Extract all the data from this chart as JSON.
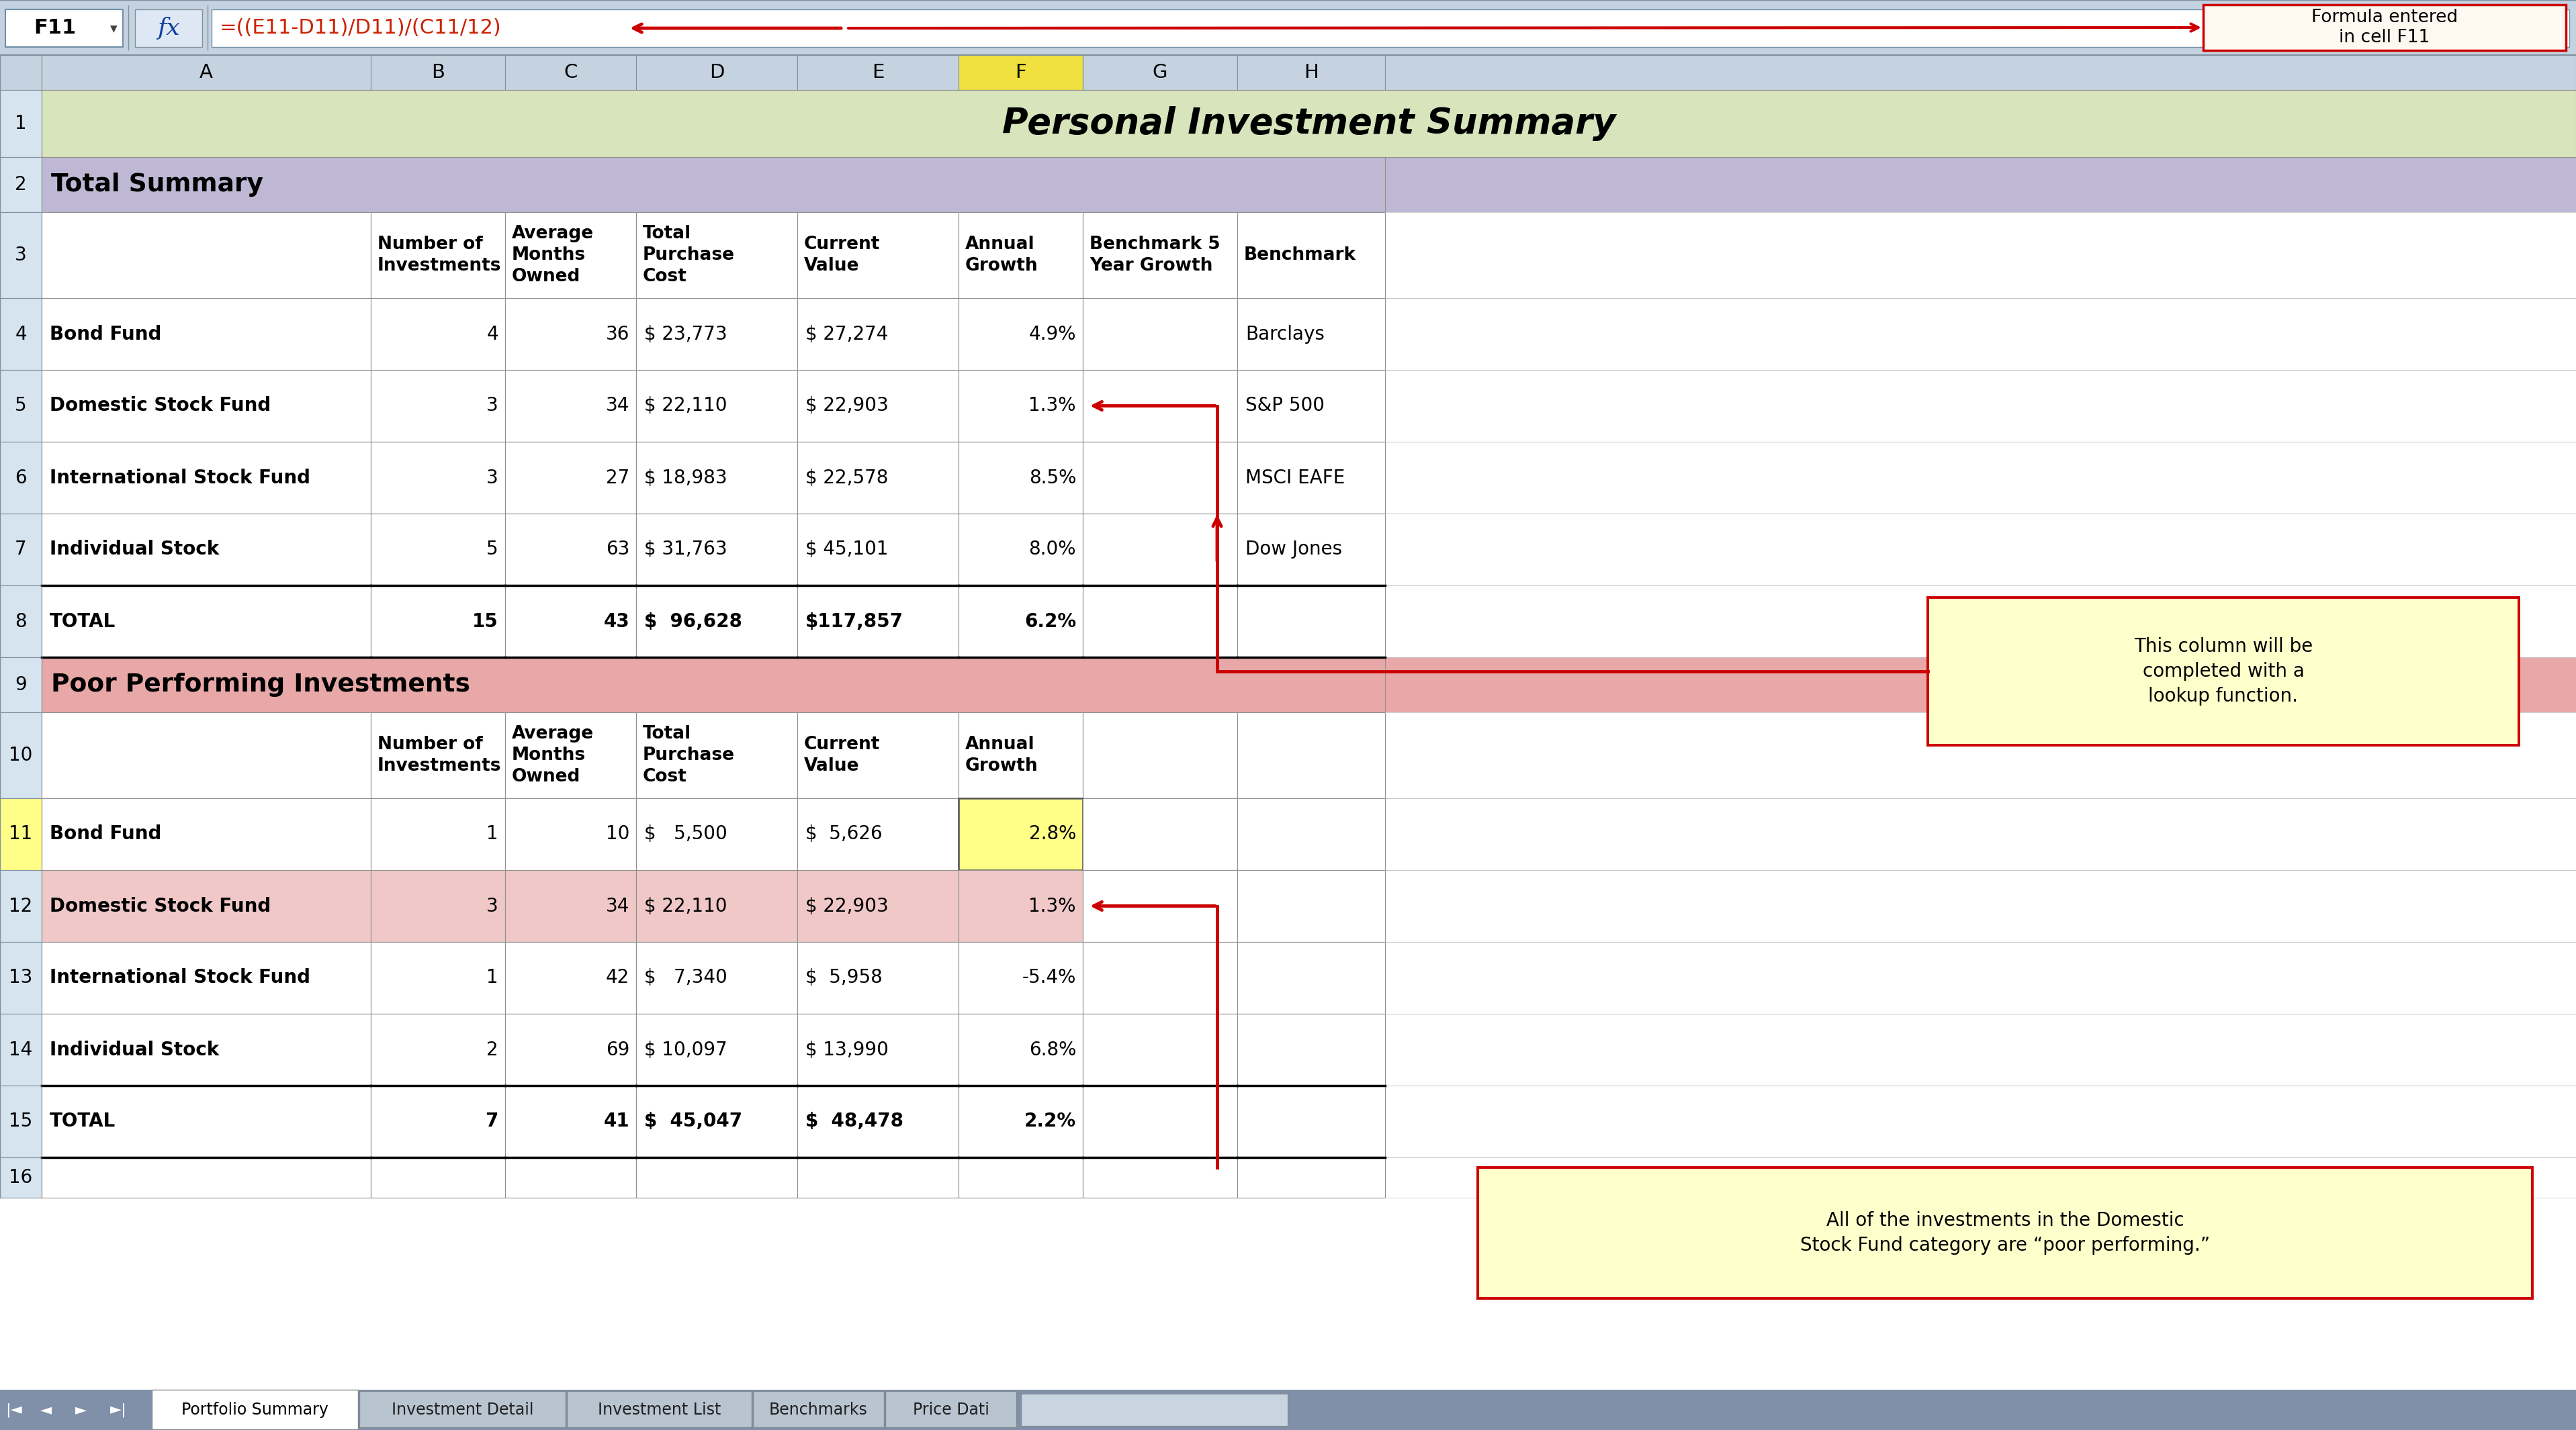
{
  "title": "Personal Investment Summary",
  "formula_bar_cell": "F11",
  "formula_bar_formula": "=((E11-D11)/D11)/(C11/12)",
  "formula_note": "Formula entered\nin cell F11",
  "section1_header": "Total Summary",
  "section1_col_headers": [
    "",
    "Number of\nInvestments",
    "Average\nMonths\nOwned",
    "Total\nPurchase\nCost",
    "Current\nValue",
    "Annual\nGrowth",
    "Benchmark 5\nYear Growth",
    "Benchmark"
  ],
  "section1_rows": [
    [
      "Bond Fund",
      "4",
      "36",
      "$ 23,773",
      "$ 27,274",
      "4.9%",
      "",
      "Barclays"
    ],
    [
      "Domestic Stock Fund",
      "3",
      "34",
      "$ 22,110",
      "$ 22,903",
      "1.3%",
      "",
      "S&P 500"
    ],
    [
      "International Stock Fund",
      "3",
      "27",
      "$ 18,983",
      "$ 22,578",
      "8.5%",
      "",
      "MSCI EAFE"
    ],
    [
      "Individual Stock",
      "5",
      "63",
      "$ 31,763",
      "$ 45,101",
      "8.0%",
      "",
      "Dow Jones"
    ]
  ],
  "section1_total": [
    "TOTAL",
    "15",
    "43",
    "$  96,628",
    "$117,857",
    "6.2%",
    "",
    ""
  ],
  "section2_header": "Poor Performing Investments",
  "section2_col_headers": [
    "",
    "Number of\nInvestments",
    "Average\nMonths\nOwned",
    "Total\nPurchase\nCost",
    "Current\nValue",
    "Annual\nGrowth",
    "",
    ""
  ],
  "section2_rows": [
    [
      "Bond Fund",
      "1",
      "10",
      "$   5,500",
      "$  5,626",
      "2.8%",
      "",
      ""
    ],
    [
      "Domestic Stock Fund",
      "3",
      "34",
      "$ 22,110",
      "$ 22,903",
      "1.3%",
      "",
      ""
    ],
    [
      "International Stock Fund",
      "1",
      "42",
      "$   7,340",
      "$  5,958",
      "-5.4%",
      "",
      ""
    ],
    [
      "Individual Stock",
      "2",
      "69",
      "$ 10,097",
      "$ 13,990",
      "6.8%",
      "",
      ""
    ]
  ],
  "section2_total": [
    "TOTAL",
    "7",
    "41",
    "$  45,047",
    "$  48,478",
    "2.2%",
    "",
    ""
  ],
  "callout1_text": "This column will be\ncompleted with a\nlookup function.",
  "callout2_text": "All of the investments in the Domestic\nStock Fund category are “poor performing.”",
  "tab_labels": [
    "Portfolio Summary",
    "Investment Detail",
    "Investment List",
    "Benchmarks",
    "Price Dati"
  ],
  "active_tab": "Portfolio Summary",
  "col_letters": [
    "A",
    "B",
    "C",
    "D",
    "E",
    "F",
    "G",
    "H"
  ],
  "colors": {
    "formula_bar_bg": "#C5D3E0",
    "row_num_bg": "#D6E4F0",
    "col_header_bg": "#C5D3E0",
    "col_header_f_bg": "#F0E040",
    "title_row_bg": "#D7E4BC",
    "section1_header_bg": "#BFB8D4",
    "section2_header_bg": "#E8A8A8",
    "data_row_bg": "#FFFFFF",
    "row11_num_bg": "#FFFF88",
    "row11_f_bg": "#FFFF88",
    "row12_bg": "#F0C8C8",
    "callout_bg": "#FFFFCC",
    "callout_border": "#CC0000",
    "arrow_color": "#CC0000",
    "grid_color": "#A0A0A0",
    "tab_active_bg": "#FFFFFF",
    "tab_inactive_bg": "#C0C8D0",
    "bottom_strip": "#8090A8",
    "scrollbar_bg": "#C0C8D4"
  }
}
